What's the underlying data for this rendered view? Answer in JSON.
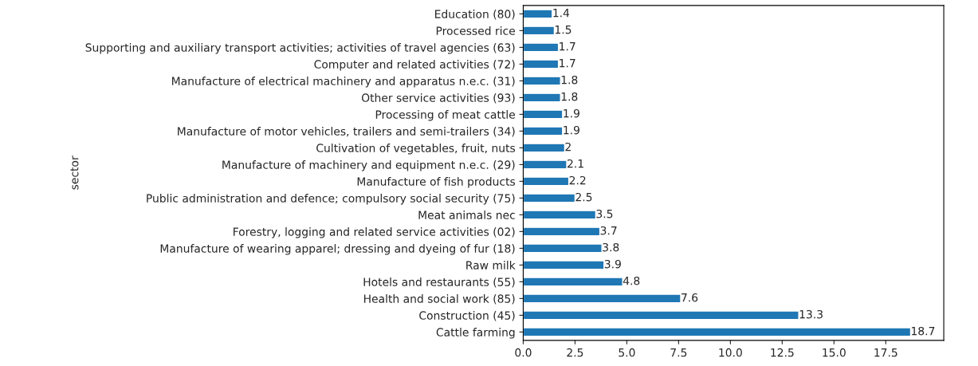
{
  "chart_data": {
    "type": "bar",
    "orientation": "horizontal",
    "ylabel": "sector",
    "categories": [
      "Education (80)",
      "Processed rice",
      "Supporting and auxiliary transport activities; activities of travel agencies (63)",
      "Computer and related activities (72)",
      "Manufacture of electrical machinery and apparatus n.e.c. (31)",
      "Other service activities (93)",
      "Processing of meat cattle",
      "Manufacture of motor vehicles, trailers and semi-trailers (34)",
      "Cultivation of vegetables, fruit, nuts",
      "Manufacture of machinery and equipment n.e.c. (29)",
      "Manufacture of fish products",
      "Public administration and defence; compulsory social security (75)",
      "Meat animals nec",
      "Forestry, logging and related service activities (02)",
      "Manufacture of wearing apparel; dressing and dyeing of fur (18)",
      "Raw milk",
      "Hotels and restaurants (55)",
      "Health and social work (85)",
      "Construction (45)",
      "Cattle farming"
    ],
    "values": [
      1.4,
      1.5,
      1.7,
      1.7,
      1.8,
      1.8,
      1.9,
      1.9,
      2,
      2.1,
      2.2,
      2.5,
      3.5,
      3.7,
      3.8,
      3.9,
      4.8,
      7.6,
      13.3,
      18.7
    ],
    "color": "#1f77b4",
    "data_labels": true,
    "grid": false,
    "legend": false,
    "xlim": [
      0,
      20.3
    ],
    "xticks": [
      {
        "value": 0,
        "label": "0.0"
      },
      2.5,
      {
        "value": 5,
        "label": "5.0"
      },
      7.5,
      {
        "value": 10,
        "label": "10.0"
      },
      12.5,
      {
        "value": 15,
        "label": "15.0"
      },
      17.5
    ]
  }
}
